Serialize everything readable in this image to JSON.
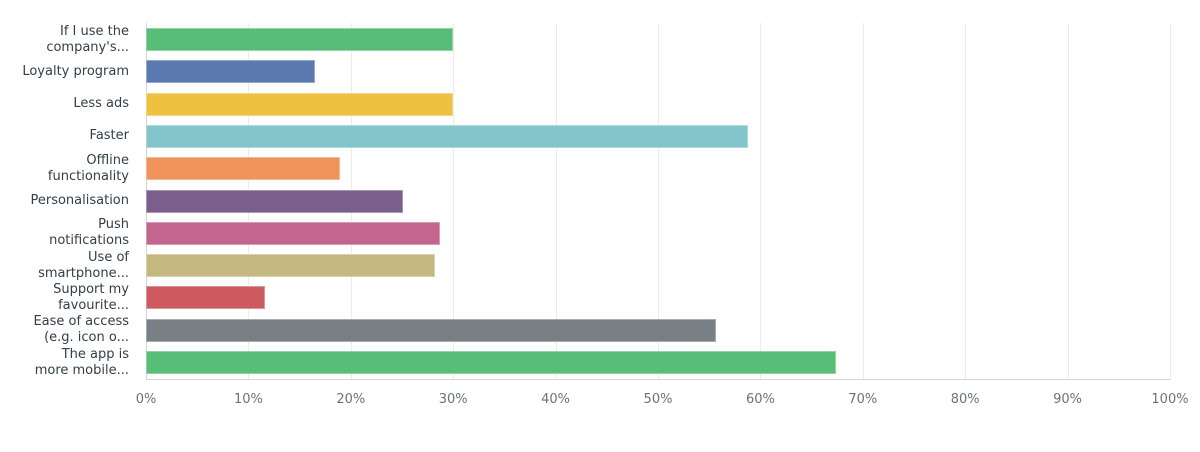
{
  "chart_data": {
    "type": "bar",
    "orientation": "horizontal",
    "title": "",
    "xlabel": "",
    "ylabel": "",
    "xlim": [
      0,
      100
    ],
    "grid": true,
    "legend": "none",
    "categories": [
      [
        "If I use the",
        "company's..."
      ],
      [
        "Loyalty program"
      ],
      [
        "Less ads"
      ],
      [
        "Faster"
      ],
      [
        "Offline",
        "functionality"
      ],
      [
        "Personalisation"
      ],
      [
        "Push",
        "notifications"
      ],
      [
        "Use of",
        "smartphone..."
      ],
      [
        "Support my",
        "favourite..."
      ],
      [
        "Ease of access",
        "(e.g. icon o..."
      ],
      [
        "The app is",
        "more mobile..."
      ]
    ],
    "values": [
      30.0,
      16.5,
      30.0,
      58.8,
      18.9,
      25.1,
      28.7,
      28.2,
      11.6,
      55.7,
      67.4
    ],
    "colors": [
      "#57bd77",
      "#5b7ab0",
      "#f0c040",
      "#82c5cb",
      "#f0925c",
      "#7a5e8c",
      "#c3658f",
      "#c4b880",
      "#cd5a5e",
      "#787f85",
      "#57bd77"
    ],
    "x_ticks": [
      "0%",
      "10%",
      "20%",
      "30%",
      "40%",
      "50%",
      "60%",
      "70%",
      "80%",
      "90%",
      "100%"
    ]
  }
}
